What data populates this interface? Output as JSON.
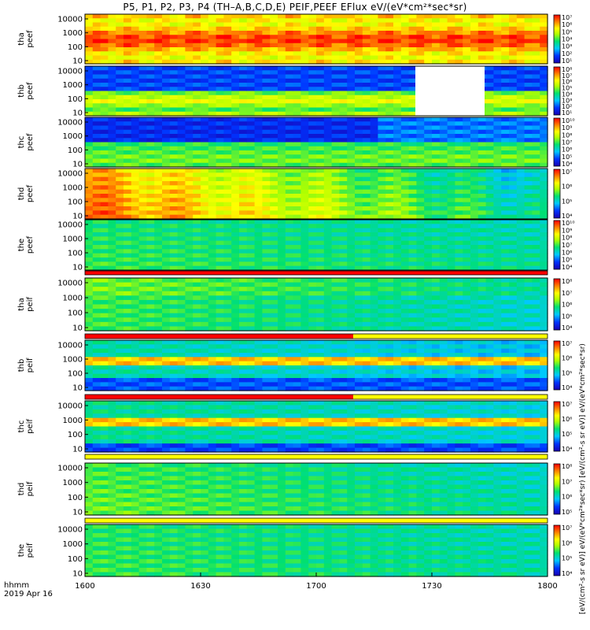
{
  "title": "P5, P1, P2, P3, P4 (TH–A,B,C,D,E) PEIF,PEEF EFlux eV/(eV*cm²*sec*sr)",
  "x_axis": {
    "row_label": "hhmm",
    "date": "2019 Apr 16",
    "ticks": [
      "1600",
      "1630",
      "1700",
      "1730",
      "1800"
    ]
  },
  "unit_label": "[eV/(cm²-s sr eV)] eV/(eV*cm²*sec*sr) [eV/(cm²-s sr eV)] eV/(eV*cm²*sec*sr)",
  "chart_data": {
    "type": "heatmap",
    "x": {
      "start": "1600",
      "end": "1800",
      "ticks": [
        "1600",
        "1630",
        "1700",
        "1730",
        "1800"
      ]
    },
    "y_scale": "log",
    "y_ticks": [
      "10",
      "100",
      "1000",
      "10000"
    ],
    "colorbar_scale": "log",
    "panels": [
      {
        "probe": "tha",
        "product": "peef",
        "colorbar_ticks": [
          "10¹",
          "10²",
          "10³",
          "10⁴",
          "10⁵",
          "10⁶",
          "10⁷"
        ],
        "white_gap": null
      },
      {
        "probe": "thb",
        "product": "peef",
        "colorbar_ticks": [
          "10¹",
          "10²",
          "10³",
          "10⁴",
          "10⁵",
          "10⁶",
          "10⁷",
          "10⁸"
        ],
        "white_gap": [
          "1720",
          "1740"
        ]
      },
      {
        "probe": "thc",
        "product": "peef",
        "colorbar_ticks": [
          "10⁴",
          "10⁵",
          "10⁶",
          "10⁷",
          "10⁸",
          "10⁹",
          "10¹⁰"
        ],
        "white_gap": null
      },
      {
        "probe": "thd",
        "product": "peef",
        "colorbar_ticks": [
          "10⁴",
          "10⁵",
          "10⁶",
          "10⁷"
        ],
        "white_gap": null
      },
      {
        "probe": "the",
        "product": "peef",
        "colorbar_ticks": [
          "10⁴",
          "10⁵",
          "10⁶",
          "10⁷",
          "10⁸",
          "10⁹",
          "10¹⁰"
        ],
        "white_gap": null
      },
      {
        "probe": "tha",
        "product": "peif",
        "colorbar_ticks": [
          "10⁴",
          "10⁵",
          "10⁶",
          "10⁷",
          "10⁸"
        ],
        "white_gap": null
      },
      {
        "probe": "thb",
        "product": "peif",
        "colorbar_ticks": [
          "10⁴",
          "10⁵",
          "10⁶",
          "10⁷"
        ],
        "white_gap": null
      },
      {
        "probe": "thc",
        "product": "peif",
        "colorbar_ticks": [
          "10⁴",
          "10⁵",
          "10⁶",
          "10⁷"
        ],
        "white_gap": null
      },
      {
        "probe": "thd",
        "product": "peif",
        "colorbar_ticks": [
          "10⁵",
          "10⁶",
          "10⁷",
          "10⁸"
        ],
        "white_gap": null
      },
      {
        "probe": "the",
        "product": "peif",
        "colorbar_ticks": [
          "10⁴",
          "10⁵",
          "10⁶",
          "10⁷"
        ],
        "white_gap": null
      }
    ]
  }
}
